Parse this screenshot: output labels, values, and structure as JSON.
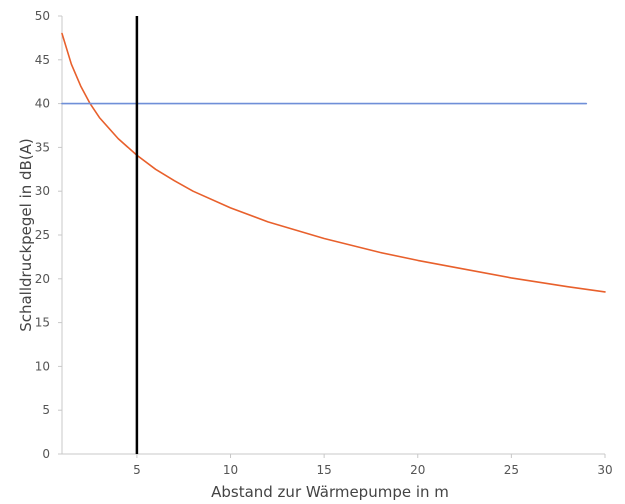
{
  "chart_data": {
    "type": "line",
    "title": "",
    "xlabel": "Abstand zur Wärmepumpe in m",
    "ylabel": "Schalldruckpegel in dB(A)",
    "xlim": [
      1,
      30
    ],
    "ylim": [
      0,
      50
    ],
    "xticks": [
      5,
      10,
      15,
      20,
      25,
      30
    ],
    "yticks": [
      0,
      5,
      10,
      15,
      20,
      25,
      30,
      35,
      40,
      45,
      50
    ],
    "grid": false,
    "legend": "none",
    "series": [
      {
        "color": "#e8602c",
        "x": [
          1,
          1.5,
          2,
          2.5,
          3,
          4,
          5,
          6,
          7,
          8,
          10,
          12,
          15,
          18,
          20,
          22,
          25,
          28,
          30
        ],
        "y": [
          48,
          44.5,
          42,
          40,
          38.4,
          36,
          34.1,
          32.5,
          31.2,
          30,
          28.1,
          26.5,
          24.6,
          23,
          22.1,
          21.3,
          20.1,
          19.1,
          18.5
        ]
      },
      {
        "color": "#6f8fd8",
        "x": [
          1,
          29
        ],
        "y": [
          40,
          40
        ]
      }
    ],
    "vlines": [
      {
        "x": 5,
        "color": "#000000"
      }
    ]
  }
}
